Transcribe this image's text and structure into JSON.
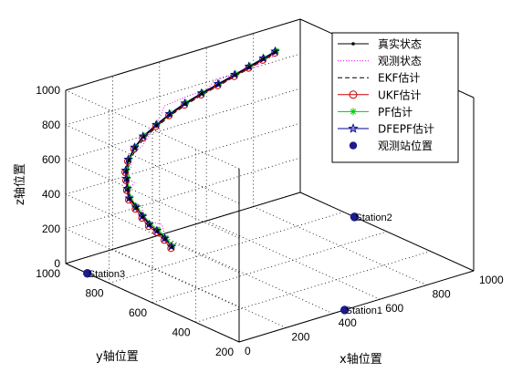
{
  "chart_data": {
    "type": "line3d",
    "xlabel": "x轴位置",
    "ylabel": "y轴位置",
    "zlabel": "z轴位置",
    "xlim": [
      0,
      1000
    ],
    "ylim": [
      200,
      1000
    ],
    "zlim": [
      0,
      1000
    ],
    "xticks": [
      "0",
      "200",
      "400",
      "600",
      "800",
      "1000"
    ],
    "yticks": [
      "200",
      "400",
      "600",
      "800",
      "1000"
    ],
    "zticks": [
      "0",
      "200",
      "400",
      "600",
      "800",
      "1000"
    ],
    "grid": true,
    "legend_position": "top-right",
    "legend": [
      "真实状态",
      "观测状态",
      "EKF估计",
      "UKF估计",
      "PF估计",
      "DFEPF估计",
      "观测站位置"
    ],
    "colors": {
      "true": "#000000",
      "obs": "#ff00ff",
      "ekf": "#000000",
      "ukf": "#cc0000",
      "pf": "#00cc00",
      "dfepf": "#00008b",
      "station": "#1c1c8c"
    },
    "trajectory": {
      "x": [
        120,
        110,
        95,
        80,
        70,
        65,
        60,
        70,
        85,
        100,
        130,
        175,
        230,
        300,
        370,
        450,
        530,
        610,
        690,
        760,
        830,
        890
      ],
      "y": [
        640,
        660,
        680,
        700,
        720,
        745,
        770,
        790,
        810,
        830,
        850,
        870,
        890,
        905,
        920,
        935,
        945,
        955,
        965,
        975,
        985,
        995
      ],
      "z": [
        250,
        290,
        330,
        360,
        400,
        440,
        480,
        520,
        560,
        590,
        630,
        670,
        700,
        730,
        755,
        775,
        795,
        810,
        825,
        838,
        850,
        860
      ]
    },
    "stations": [
      {
        "name": "Station1",
        "x": 450,
        "y": 200,
        "z": 0
      },
      {
        "name": "Station2",
        "x": 1000,
        "y": 750,
        "z": 0
      },
      {
        "name": "Station3",
        "x": 0,
        "y": 900,
        "z": 0
      }
    ]
  }
}
